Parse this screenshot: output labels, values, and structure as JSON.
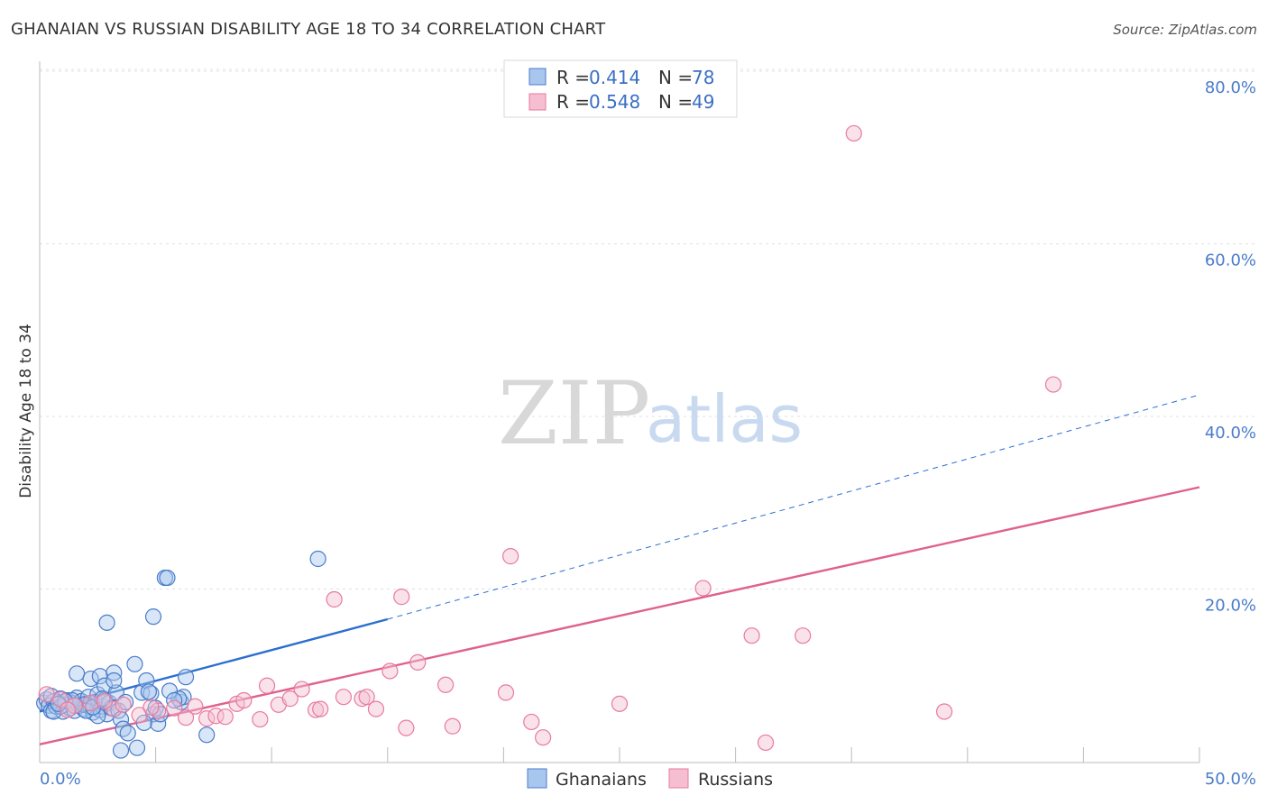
{
  "title": "GHANAIAN VS RUSSIAN DISABILITY AGE 18 TO 34 CORRELATION CHART",
  "source": "Source: ZipAtlas.com",
  "watermark": {
    "zip": "ZIP",
    "atlas": "atlas"
  },
  "colors": {
    "blue": "#4a7cc9",
    "blue_fill": "#a9c7ee",
    "blue_line": "#2a6fcf",
    "pink": "#e87aa0",
    "pink_fill": "#f5bfd1",
    "pink_line": "#e0608f",
    "grid": "#e0e0e0"
  },
  "chart_data": {
    "type": "scatter",
    "title": "GHANAIAN VS RUSSIAN DISABILITY AGE 18 TO 34 CORRELATION CHART",
    "xlabel": "",
    "ylabel": "Disability Age 18 to 34",
    "xlim": [
      0,
      50
    ],
    "ylim": [
      0,
      82
    ],
    "x_tick_labels": [
      "0.0%",
      "50.0%"
    ],
    "y_ticks": [
      20,
      40,
      60,
      80
    ],
    "y_tick_labels": [
      "20.0%",
      "40.0%",
      "60.0%",
      "80.0%"
    ],
    "legend": [
      {
        "name": "Ghanaians",
        "r_label": "R =",
        "r": "0.414",
        "n_label": "N =",
        "n": "78"
      },
      {
        "name": "Russians",
        "r_label": "R =",
        "r": "0.548",
        "n_label": "N =",
        "n": "49"
      }
    ],
    "series": [
      {
        "name": "Ghanaians",
        "color": "blue",
        "trend": {
          "x0": 0,
          "y0": 5.8,
          "x1": 15,
          "y1": 16.5,
          "dash_to_x": 50,
          "dash_to_y": 42.5
        },
        "points": [
          [
            0.2,
            6.8
          ],
          [
            0.3,
            7.2
          ],
          [
            0.4,
            6.5
          ],
          [
            0.5,
            5.9
          ],
          [
            0.6,
            7.0
          ],
          [
            0.7,
            6.4
          ],
          [
            0.8,
            6.9
          ],
          [
            0.9,
            7.3
          ],
          [
            1.0,
            5.8
          ],
          [
            1.1,
            6.6
          ],
          [
            1.2,
            7.1
          ],
          [
            1.3,
            6.2
          ],
          [
            1.4,
            6.8
          ],
          [
            1.5,
            5.9
          ],
          [
            1.6,
            7.4
          ],
          [
            1.7,
            6.5
          ],
          [
            1.8,
            7.0
          ],
          [
            1.9,
            6.1
          ],
          [
            2.0,
            6.7
          ],
          [
            2.1,
            7.5
          ],
          [
            2.2,
            6.3
          ],
          [
            2.3,
            5.7
          ],
          [
            2.4,
            6.9
          ],
          [
            2.5,
            7.8
          ],
          [
            2.6,
            6.0
          ],
          [
            2.7,
            6.4
          ],
          [
            2.8,
            7.2
          ],
          [
            2.9,
            5.5
          ],
          [
            3.0,
            6.8
          ],
          [
            1.6,
            10.2
          ],
          [
            2.2,
            9.6
          ],
          [
            2.6,
            9.9
          ],
          [
            2.8,
            8.8
          ],
          [
            3.2,
            10.3
          ],
          [
            3.3,
            8.0
          ],
          [
            3.1,
            6.2
          ],
          [
            3.4,
            5.9
          ],
          [
            3.5,
            4.9
          ],
          [
            3.6,
            3.8
          ],
          [
            3.5,
            1.3
          ],
          [
            3.8,
            3.3
          ],
          [
            4.2,
            1.6
          ],
          [
            4.1,
            11.3
          ],
          [
            4.4,
            8.0
          ],
          [
            4.6,
            9.4
          ],
          [
            4.8,
            7.9
          ],
          [
            4.9,
            5.5
          ],
          [
            5.1,
            4.4
          ],
          [
            5.0,
            6.2
          ],
          [
            5.2,
            5.5
          ],
          [
            6.1,
            6.9
          ],
          [
            6.2,
            7.5
          ],
          [
            6.3,
            9.8
          ],
          [
            6.0,
            7.3
          ],
          [
            5.6,
            8.2
          ],
          [
            5.8,
            7.1
          ],
          [
            4.9,
            16.8
          ],
          [
            2.9,
            16.1
          ],
          [
            5.4,
            21.3
          ],
          [
            5.5,
            21.3
          ],
          [
            12.0,
            23.5
          ],
          [
            7.2,
            3.1
          ],
          [
            3.2,
            9.4
          ],
          [
            2.5,
            5.3
          ],
          [
            1.9,
            6.6
          ],
          [
            1.4,
            7.1
          ],
          [
            0.9,
            6.4
          ],
          [
            0.6,
            5.8
          ],
          [
            0.5,
            7.6
          ],
          [
            1.1,
            7.0
          ],
          [
            2.0,
            5.9
          ],
          [
            2.3,
            6.3
          ],
          [
            3.7,
            6.9
          ],
          [
            4.7,
            8.1
          ],
          [
            1.5,
            6.5
          ],
          [
            2.7,
            7.3
          ],
          [
            0.8,
            6.7
          ],
          [
            4.5,
            4.5
          ]
        ]
      },
      {
        "name": "Russians",
        "color": "pink",
        "trend": {
          "x0": 0,
          "y0": 2.0,
          "x1": 50,
          "y1": 31.8
        },
        "points": [
          [
            0.3,
            7.8
          ],
          [
            0.9,
            7.2
          ],
          [
            1.5,
            6.5
          ],
          [
            2.2,
            6.8
          ],
          [
            3.2,
            6.1
          ],
          [
            3.6,
            6.6
          ],
          [
            4.3,
            5.4
          ],
          [
            5.1,
            5.9
          ],
          [
            5.8,
            6.2
          ],
          [
            6.3,
            5.1
          ],
          [
            6.7,
            6.4
          ],
          [
            7.2,
            5.0
          ],
          [
            7.6,
            5.3
          ],
          [
            8.0,
            5.2
          ],
          [
            8.5,
            6.7
          ],
          [
            8.8,
            7.1
          ],
          [
            9.5,
            4.9
          ],
          [
            9.8,
            8.8
          ],
          [
            10.3,
            6.6
          ],
          [
            10.8,
            7.3
          ],
          [
            11.3,
            8.4
          ],
          [
            11.9,
            6.0
          ],
          [
            12.1,
            6.1
          ],
          [
            12.7,
            18.8
          ],
          [
            13.1,
            7.5
          ],
          [
            13.9,
            7.3
          ],
          [
            14.1,
            7.5
          ],
          [
            14.5,
            6.1
          ],
          [
            15.1,
            10.5
          ],
          [
            15.6,
            19.1
          ],
          [
            15.8,
            3.9
          ],
          [
            16.3,
            11.5
          ],
          [
            17.5,
            8.9
          ],
          [
            17.8,
            4.1
          ],
          [
            20.1,
            8.0
          ],
          [
            20.3,
            23.8
          ],
          [
            21.2,
            4.6
          ],
          [
            21.7,
            2.8
          ],
          [
            25.0,
            6.7
          ],
          [
            28.6,
            20.1
          ],
          [
            30.7,
            14.6
          ],
          [
            31.3,
            2.2
          ],
          [
            32.9,
            14.6
          ],
          [
            35.1,
            72.8
          ],
          [
            39.0,
            5.8
          ],
          [
            43.7,
            43.7
          ],
          [
            1.2,
            6.0
          ],
          [
            2.8,
            7.0
          ],
          [
            4.8,
            6.3
          ]
        ]
      }
    ]
  }
}
